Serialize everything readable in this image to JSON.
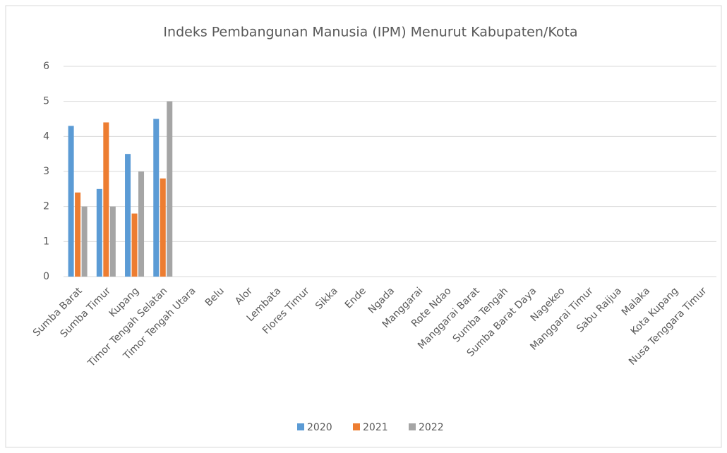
{
  "chart_data": {
    "type": "bar",
    "title": "Indeks Pembangunan Manusia (IPM) Menurut Kabupaten/Kota",
    "categories": [
      "Sumba Barat",
      "Sumba Timur",
      "Kupang",
      "Timor Tengah Selatan",
      "Timor Tengah Utara",
      "Belu",
      "Alor",
      "Lembata",
      "Flores Timur",
      "Sikka",
      "Ende",
      "Ngada",
      "Manggarai",
      "Rote Ndao",
      "Manggarai Barat",
      "Sumba Tengah",
      "Sumba Barat Daya",
      "Nagekeo",
      "Manggarai Timur",
      "Sabu Raijua",
      "Malaka",
      "Kota Kupang",
      "Nusa Tenggara Timur"
    ],
    "series": [
      {
        "name": "2020",
        "color": "#5b9bd5",
        "values": [
          4.3,
          2.5,
          3.5,
          4.5,
          null,
          null,
          null,
          null,
          null,
          null,
          null,
          null,
          null,
          null,
          null,
          null,
          null,
          null,
          null,
          null,
          null,
          null,
          null
        ]
      },
      {
        "name": "2021",
        "color": "#ed7d31",
        "values": [
          2.4,
          4.4,
          1.8,
          2.8,
          null,
          null,
          null,
          null,
          null,
          null,
          null,
          null,
          null,
          null,
          null,
          null,
          null,
          null,
          null,
          null,
          null,
          null,
          null
        ]
      },
      {
        "name": "2022",
        "color": "#a5a5a5",
        "values": [
          2.0,
          2.0,
          3.0,
          5.0,
          null,
          null,
          null,
          null,
          null,
          null,
          null,
          null,
          null,
          null,
          null,
          null,
          null,
          null,
          null,
          null,
          null,
          null,
          null
        ]
      }
    ],
    "ylim": [
      0,
      6
    ],
    "yticks": [
      0,
      1,
      2,
      3,
      4,
      5,
      6
    ],
    "grid": true,
    "legend": "bottom"
  }
}
